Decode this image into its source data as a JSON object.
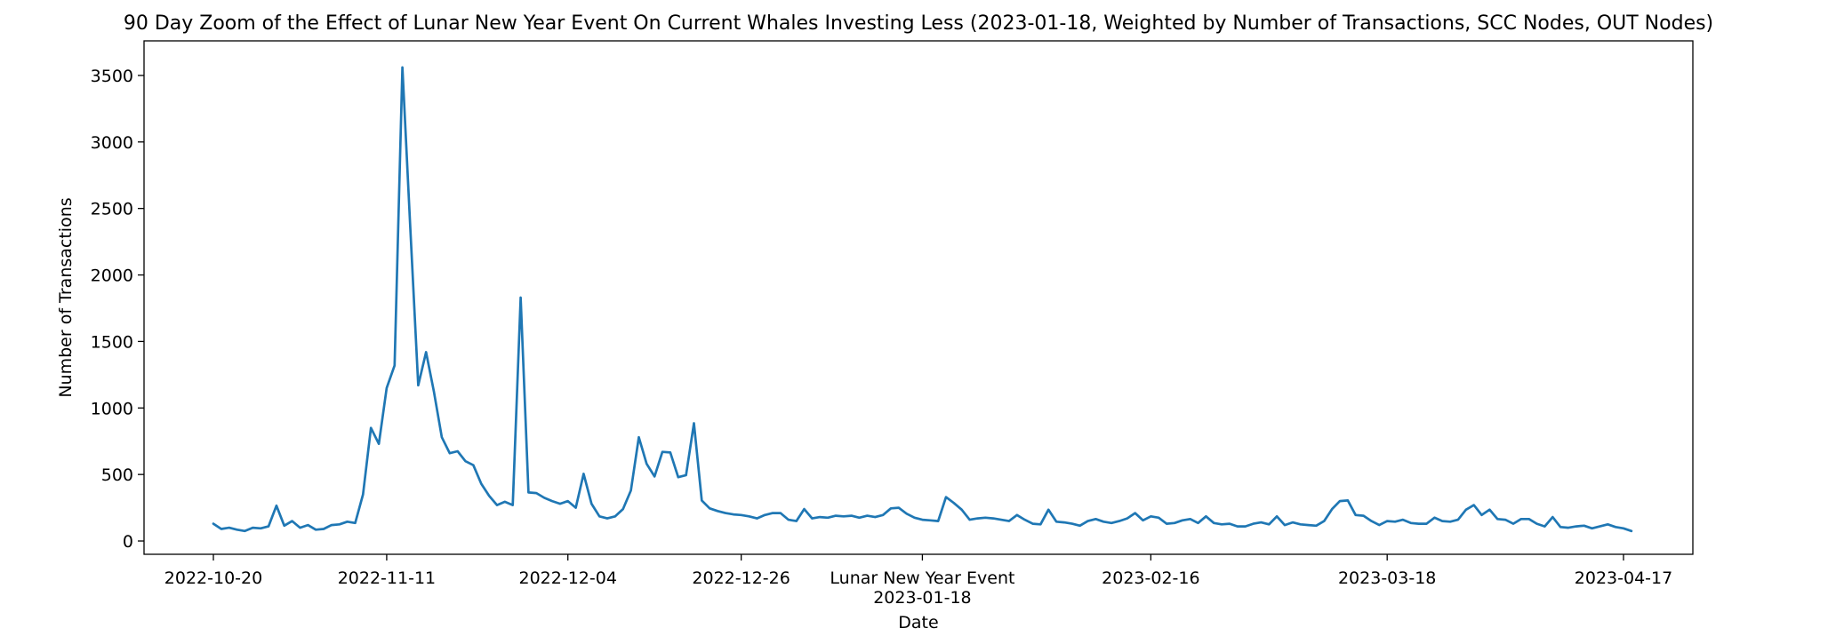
{
  "chart_data": {
    "type": "line",
    "title": "90 Day Zoom of the Effect of Lunar New Year Event On Current Whales Investing Less (2023-01-18, Weighted by Number of Transactions, SCC Nodes, OUT Nodes)",
    "xlabel": "Date",
    "ylabel": "Number of Transactions",
    "x_range": [
      "2022-10-20",
      "2023-04-17"
    ],
    "ylim": [
      -100,
      3760
    ],
    "yticks": [
      0,
      500,
      1000,
      1500,
      2000,
      2500,
      3000,
      3500
    ],
    "xticks": [
      {
        "date": "2022-10-20",
        "label": "2022-10-20"
      },
      {
        "date": "2022-11-11",
        "label": "2022-11-11"
      },
      {
        "date": "2022-12-04",
        "label": "2022-12-04"
      },
      {
        "date": "2022-12-26",
        "label": "2022-12-26"
      },
      {
        "date": "2023-01-18",
        "label": "2023-01-18",
        "event_label": "Lunar New Year Event"
      },
      {
        "date": "2023-02-16",
        "label": "2023-02-16"
      },
      {
        "date": "2023-03-18",
        "label": "2023-03-18"
      },
      {
        "date": "2023-04-17",
        "label": "2023-04-17"
      }
    ],
    "grid": false,
    "series": [
      {
        "color": "#1f77b4",
        "start_date": "2022-10-20",
        "step_days": 1,
        "values": [
          130,
          90,
          100,
          85,
          75,
          100,
          95,
          110,
          265,
          115,
          150,
          100,
          120,
          85,
          90,
          120,
          125,
          145,
          135,
          350,
          850,
          730,
          1150,
          1320,
          3560,
          2350,
          1170,
          1420,
          1120,
          780,
          660,
          675,
          600,
          570,
          430,
          340,
          270,
          295,
          270,
          1830,
          365,
          360,
          325,
          300,
          280,
          300,
          250,
          505,
          280,
          185,
          170,
          185,
          240,
          380,
          780,
          580,
          485,
          670,
          665,
          480,
          495,
          885,
          305,
          245,
          225,
          210,
          200,
          195,
          185,
          170,
          195,
          210,
          210,
          160,
          150,
          240,
          170,
          180,
          175,
          190,
          185,
          190,
          175,
          190,
          180,
          195,
          245,
          250,
          205,
          175,
          160,
          155,
          150,
          330,
          285,
          235,
          160,
          170,
          175,
          170,
          160,
          150,
          195,
          160,
          130,
          125,
          235,
          145,
          140,
          130,
          115,
          150,
          165,
          145,
          135,
          150,
          170,
          210,
          155,
          185,
          175,
          130,
          135,
          155,
          165,
          135,
          185,
          135,
          125,
          130,
          110,
          110,
          130,
          140,
          125,
          185,
          120,
          140,
          125,
          120,
          115,
          150,
          240,
          300,
          305,
          195,
          190,
          150,
          120,
          150,
          145,
          160,
          135,
          130,
          130,
          175,
          150,
          145,
          160,
          235,
          270,
          195,
          235,
          165,
          160,
          130,
          165,
          165,
          130,
          110,
          180,
          105,
          100,
          110,
          115,
          95,
          110,
          125,
          105,
          95,
          75
        ]
      }
    ]
  }
}
